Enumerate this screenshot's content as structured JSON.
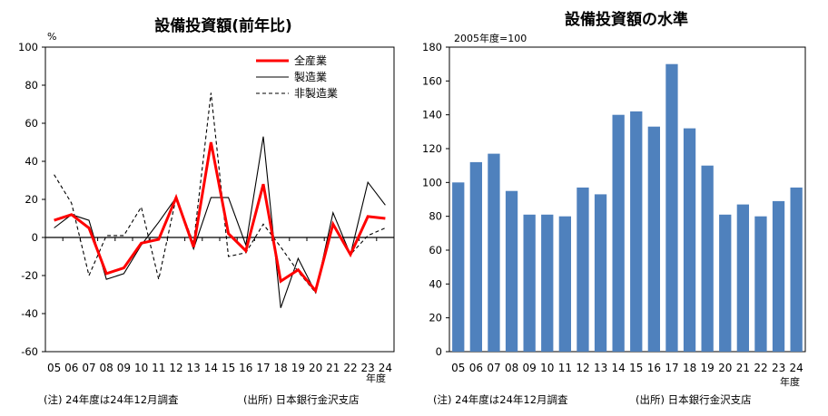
{
  "chart_data": [
    {
      "type": "line",
      "title": "設備投資額(前年比)",
      "ylabel": "%",
      "ylim": [
        -60,
        100
      ],
      "yticks": [
        100,
        80,
        60,
        40,
        20,
        0,
        -20,
        -40,
        -60
      ],
      "categories": [
        "05",
        "06",
        "07",
        "08",
        "09",
        "10",
        "11",
        "12",
        "13",
        "14",
        "15",
        "16",
        "17",
        "18",
        "19",
        "20",
        "21",
        "22",
        "23",
        "24"
      ],
      "series": [
        {
          "name": "全産業",
          "color": "#ff0000",
          "style": "solid-thick",
          "values": [
            9,
            12,
            5,
            -19,
            -16,
            -3,
            -1,
            21,
            -5,
            50,
            2,
            -7,
            28,
            -23,
            -17,
            -28,
            7,
            -9,
            11,
            10
          ]
        },
        {
          "name": "製造業",
          "color": "#000000",
          "style": "solid",
          "values": [
            5,
            12,
            9,
            -22,
            -19,
            -4,
            8,
            21,
            -6,
            21,
            21,
            -4,
            53,
            -37,
            -11,
            -29,
            13,
            -9,
            29,
            17
          ]
        },
        {
          "name": "非製造業",
          "color": "#000000",
          "style": "dashed",
          "values": [
            33,
            18,
            -20,
            1,
            1,
            16,
            -22,
            21,
            -3,
            76,
            -10,
            -8,
            7,
            -5,
            -18,
            -29,
            7,
            -9,
            1,
            5
          ]
        }
      ],
      "grid": false,
      "legend_position": "top-right",
      "xunit": "年度",
      "note": "(注) 24年度は24年12月調査",
      "source": "(出所) 日本銀行金沢支店"
    },
    {
      "type": "bar",
      "title": "設備投資額の水準",
      "ylabel": "2005年度=100",
      "ylim": [
        0,
        180
      ],
      "yticks": [
        180,
        160,
        140,
        120,
        100,
        80,
        60,
        40,
        20,
        0
      ],
      "categories": [
        "05",
        "06",
        "07",
        "08",
        "09",
        "10",
        "11",
        "12",
        "13",
        "14",
        "15",
        "16",
        "17",
        "18",
        "19",
        "20",
        "21",
        "22",
        "23",
        "24"
      ],
      "values": [
        100,
        112,
        117,
        95,
        81,
        81,
        80,
        97,
        93,
        140,
        142,
        133,
        170,
        132,
        110,
        81,
        87,
        80,
        89,
        97
      ],
      "color": "#4f81bd",
      "grid": false,
      "xunit": "年度",
      "note": "(注) 24年度は24年12月調査",
      "source": "(出所) 日本銀行金沢支店"
    }
  ]
}
